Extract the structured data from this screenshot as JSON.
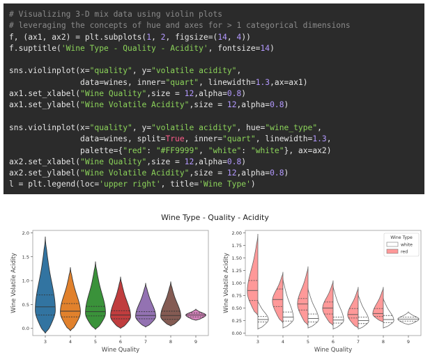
{
  "code": {
    "lines": [
      {
        "segments": [
          {
            "t": "# Visualizing 3-D mix data using violin plots",
            "c": "com"
          }
        ]
      },
      {
        "segments": [
          {
            "t": "# leveraging the concepts of hue and axes for > 1 categorical dimensions",
            "c": "com"
          }
        ]
      },
      {
        "segments": [
          {
            "t": "f, (ax1, ax2) = plt.subplots(",
            "c": "txt"
          },
          {
            "t": "1",
            "c": "num"
          },
          {
            "t": ", ",
            "c": "txt"
          },
          {
            "t": "2",
            "c": "num"
          },
          {
            "t": ", figsize=(",
            "c": "txt"
          },
          {
            "t": "14",
            "c": "num"
          },
          {
            "t": ", ",
            "c": "txt"
          },
          {
            "t": "4",
            "c": "num"
          },
          {
            "t": "))",
            "c": "txt"
          }
        ]
      },
      {
        "segments": [
          {
            "t": "f.suptitle(",
            "c": "txt"
          },
          {
            "t": "'Wine Type - Quality - Acidity'",
            "c": "green"
          },
          {
            "t": ", fontsize=",
            "c": "txt"
          },
          {
            "t": "14",
            "c": "num"
          },
          {
            "t": ")",
            "c": "txt"
          }
        ]
      },
      {
        "blank": true
      },
      {
        "segments": [
          {
            "t": "sns.violinplot(x=",
            "c": "txt"
          },
          {
            "t": "\"quality\"",
            "c": "green"
          },
          {
            "t": ", y=",
            "c": "txt"
          },
          {
            "t": "\"volatile acidity\"",
            "c": "green"
          },
          {
            "t": ",",
            "c": "txt"
          }
        ]
      },
      {
        "segments": [
          {
            "t": "               data=wines, inner=",
            "c": "txt"
          },
          {
            "t": "\"quart\"",
            "c": "green"
          },
          {
            "t": ", linewidth=",
            "c": "txt"
          },
          {
            "t": "1.3",
            "c": "num"
          },
          {
            "t": ",ax=ax1)",
            "c": "txt"
          }
        ]
      },
      {
        "segments": [
          {
            "t": "ax1.set_xlabel(",
            "c": "txt"
          },
          {
            "t": "\"Wine Quality\"",
            "c": "green"
          },
          {
            "t": ",size = ",
            "c": "txt"
          },
          {
            "t": "12",
            "c": "num"
          },
          {
            "t": ",alpha=",
            "c": "txt"
          },
          {
            "t": "0.8",
            "c": "num"
          },
          {
            "t": ")",
            "c": "txt"
          }
        ]
      },
      {
        "segments": [
          {
            "t": "ax1.set_ylabel(",
            "c": "txt"
          },
          {
            "t": "\"Wine Volatile Acidity\"",
            "c": "green"
          },
          {
            "t": ",size = ",
            "c": "txt"
          },
          {
            "t": "12",
            "c": "num"
          },
          {
            "t": ",alpha=",
            "c": "txt"
          },
          {
            "t": "0.8",
            "c": "num"
          },
          {
            "t": ")",
            "c": "txt"
          }
        ]
      },
      {
        "blank": true
      },
      {
        "segments": [
          {
            "t": "sns.violinplot(x=",
            "c": "txt"
          },
          {
            "t": "\"quality\"",
            "c": "green"
          },
          {
            "t": ", y=",
            "c": "txt"
          },
          {
            "t": "\"volatile acidity\"",
            "c": "green"
          },
          {
            "t": ", hue=",
            "c": "txt"
          },
          {
            "t": "\"wine_type\"",
            "c": "green"
          },
          {
            "t": ",",
            "c": "txt"
          }
        ]
      },
      {
        "segments": [
          {
            "t": "               data=wines, split=",
            "c": "txt"
          },
          {
            "t": "True",
            "c": "kw"
          },
          {
            "t": ", inner=",
            "c": "txt"
          },
          {
            "t": "\"quart\"",
            "c": "green"
          },
          {
            "t": ", linewidth=",
            "c": "txt"
          },
          {
            "t": "1.3",
            "c": "num"
          },
          {
            "t": ",",
            "c": "txt"
          }
        ]
      },
      {
        "segments": [
          {
            "t": "               palette={",
            "c": "txt"
          },
          {
            "t": "\"red\"",
            "c": "green"
          },
          {
            "t": ": ",
            "c": "txt"
          },
          {
            "t": "\"#FF9999\"",
            "c": "green"
          },
          {
            "t": ", ",
            "c": "txt"
          },
          {
            "t": "\"white\"",
            "c": "green"
          },
          {
            "t": ": ",
            "c": "txt"
          },
          {
            "t": "\"white\"",
            "c": "green"
          },
          {
            "t": "}, ax=ax2)",
            "c": "txt"
          }
        ]
      },
      {
        "segments": [
          {
            "t": "ax2.set_xlabel(",
            "c": "txt"
          },
          {
            "t": "\"Wine Quality\"",
            "c": "green"
          },
          {
            "t": ",size = ",
            "c": "txt"
          },
          {
            "t": "12",
            "c": "num"
          },
          {
            "t": ",alpha=",
            "c": "txt"
          },
          {
            "t": "0.8",
            "c": "num"
          },
          {
            "t": ")",
            "c": "txt"
          }
        ]
      },
      {
        "segments": [
          {
            "t": "ax2.set_ylabel(",
            "c": "txt"
          },
          {
            "t": "\"Wine Volatile Acidity\"",
            "c": "green"
          },
          {
            "t": ",size = ",
            "c": "txt"
          },
          {
            "t": "12",
            "c": "num"
          },
          {
            "t": ",alpha=",
            "c": "txt"
          },
          {
            "t": "0.8",
            "c": "num"
          },
          {
            "t": ")",
            "c": "txt"
          }
        ]
      },
      {
        "segments": [
          {
            "t": "l = plt.legend(loc=",
            "c": "txt"
          },
          {
            "t": "'upper right'",
            "c": "green"
          },
          {
            "t": ", title=",
            "c": "txt"
          },
          {
            "t": "'Wine Type'",
            "c": "green"
          },
          {
            "t": ")",
            "c": "txt"
          }
        ]
      }
    ]
  },
  "figure": {
    "suptitle": "Wine Type - Quality - Acidity"
  },
  "chart_data": [
    {
      "type": "violin",
      "xlabel": "Wine Quality",
      "ylabel": "Wine Volatile Acidity",
      "ylim": [
        -0.15,
        2.05
      ],
      "yticks": [
        "0.0",
        "0.5",
        "1.0",
        "1.5",
        "2.0"
      ],
      "ytick_values": [
        0.0,
        0.5,
        1.0,
        1.5,
        2.0
      ],
      "categories": [
        "3",
        "4",
        "5",
        "6",
        "7",
        "8",
        "9"
      ],
      "colors": [
        "#3274a1",
        "#e1812c",
        "#3a923a",
        "#c03d3e",
        "#9372b2",
        "#845b53",
        "#d684bd"
      ],
      "violins": [
        {
          "min": -0.1,
          "max": 1.92,
          "q1": 0.28,
          "median": 0.45,
          "q3": 0.7,
          "peak": 0.38
        },
        {
          "min": -0.05,
          "max": 1.28,
          "q1": 0.24,
          "median": 0.36,
          "q3": 0.52,
          "peak": 0.34
        },
        {
          "min": -0.02,
          "max": 1.4,
          "q1": 0.26,
          "median": 0.35,
          "q3": 0.46,
          "peak": 0.32
        },
        {
          "min": 0.0,
          "max": 1.08,
          "q1": 0.2,
          "median": 0.28,
          "q3": 0.37,
          "peak": 0.25
        },
        {
          "min": 0.03,
          "max": 0.95,
          "q1": 0.2,
          "median": 0.27,
          "q3": 0.35,
          "peak": 0.25
        },
        {
          "min": 0.05,
          "max": 0.98,
          "q1": 0.19,
          "median": 0.27,
          "q3": 0.36,
          "peak": 0.25
        },
        {
          "min": 0.17,
          "max": 0.4,
          "q1": 0.24,
          "median": 0.28,
          "q3": 0.32,
          "peak": 0.28
        }
      ]
    },
    {
      "type": "split-violin",
      "xlabel": "Wine Quality",
      "ylabel": "Wine Volatile Acidity",
      "ylim": [
        -0.05,
        2.05
      ],
      "yticks": [
        "0.00",
        "0.25",
        "0.50",
        "0.75",
        "1.00",
        "1.25",
        "1.50",
        "1.75",
        "2.00"
      ],
      "ytick_values": [
        0.0,
        0.25,
        0.5,
        0.75,
        1.0,
        1.25,
        1.5,
        1.75,
        2.0
      ],
      "categories": [
        "3",
        "4",
        "5",
        "6",
        "7",
        "8",
        "9"
      ],
      "legend": {
        "title": "Wine Type",
        "entries": [
          {
            "label": "white",
            "color": "#ffffff"
          },
          {
            "label": "red",
            "color": "#FF9999"
          }
        ],
        "placement": "upper right"
      },
      "white": [
        {
          "min": 0.08,
          "max": 0.65,
          "q1": 0.22,
          "median": 0.27,
          "q3": 0.33,
          "peak": 0.27
        },
        {
          "min": 0.1,
          "max": 1.1,
          "q1": 0.24,
          "median": 0.32,
          "q3": 0.42,
          "peak": 0.28
        },
        {
          "min": 0.1,
          "max": 0.9,
          "q1": 0.22,
          "median": 0.29,
          "q3": 0.38,
          "peak": 0.27
        },
        {
          "min": 0.08,
          "max": 0.95,
          "q1": 0.2,
          "median": 0.26,
          "q3": 0.32,
          "peak": 0.25
        },
        {
          "min": 0.08,
          "max": 0.78,
          "q1": 0.19,
          "median": 0.25,
          "q3": 0.32,
          "peak": 0.24
        },
        {
          "min": 0.1,
          "max": 0.7,
          "q1": 0.21,
          "median": 0.27,
          "q3": 0.35,
          "peak": 0.25
        },
        {
          "min": 0.17,
          "max": 0.42,
          "q1": 0.24,
          "median": 0.28,
          "q3": 0.32,
          "peak": 0.28
        }
      ],
      "red": [
        {
          "min": 0.35,
          "max": 1.98,
          "q1": 0.65,
          "median": 0.85,
          "q3": 1.05,
          "peak": 0.82
        },
        {
          "min": 0.2,
          "max": 1.22,
          "q1": 0.53,
          "median": 0.67,
          "q3": 0.88,
          "peak": 0.64
        },
        {
          "min": 0.15,
          "max": 1.33,
          "q1": 0.46,
          "median": 0.58,
          "q3": 0.69,
          "peak": 0.58
        },
        {
          "min": 0.15,
          "max": 1.05,
          "q1": 0.38,
          "median": 0.5,
          "q3": 0.62,
          "peak": 0.49
        },
        {
          "min": 0.1,
          "max": 0.92,
          "q1": 0.3,
          "median": 0.37,
          "q3": 0.49,
          "peak": 0.36
        },
        {
          "min": 0.22,
          "max": 0.92,
          "q1": 0.33,
          "median": 0.39,
          "q3": 0.49,
          "peak": 0.38
        },
        null
      ]
    }
  ]
}
